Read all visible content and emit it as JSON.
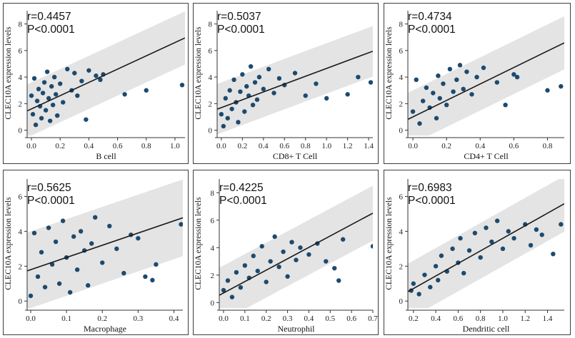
{
  "y_axis_label": "CLEC10A expression levels",
  "colors": {
    "point": "#1d4a6e",
    "band": "#e4e4e4",
    "line": "#1a1a1a",
    "axis": "#333333"
  },
  "chart_data": [
    {
      "type": "scatter",
      "title": "",
      "xlabel": "B cell",
      "ylabel": "CLEC10A expression levels",
      "r_label": "r=0.4457",
      "p_label": "P<0.0001",
      "xlim": [
        -0.03,
        1.07
      ],
      "ylim": [
        -0.4,
        9
      ],
      "xticks": [
        0.0,
        0.2,
        0.4,
        0.6,
        0.8,
        1.0
      ],
      "xtick_labels": [
        "0.0",
        "0.2",
        "0.4",
        "0.6",
        "0.8",
        "1.0"
      ],
      "yticks": [
        0,
        2,
        4,
        6,
        8
      ],
      "ytick_labels": [
        "0",
        "2",
        "4",
        "6",
        "8"
      ],
      "fit": {
        "slope": 5.0,
        "intercept": 1.6
      },
      "band_halfwidth": 2.0,
      "points": [
        [
          0.0,
          2.6
        ],
        [
          0.01,
          1.2
        ],
        [
          0.02,
          3.9
        ],
        [
          0.03,
          0.4
        ],
        [
          0.04,
          2.2
        ],
        [
          0.05,
          3.1
        ],
        [
          0.06,
          1.8
        ],
        [
          0.07,
          0.9
        ],
        [
          0.08,
          2.8
        ],
        [
          0.09,
          3.6
        ],
        [
          0.1,
          1.5
        ],
        [
          0.11,
          4.4
        ],
        [
          0.12,
          2.4
        ],
        [
          0.13,
          0.7
        ],
        [
          0.14,
          3.3
        ],
        [
          0.15,
          1.9
        ],
        [
          0.16,
          4.0
        ],
        [
          0.17,
          2.7
        ],
        [
          0.18,
          1.1
        ],
        [
          0.2,
          3.5
        ],
        [
          0.22,
          2.1
        ],
        [
          0.25,
          4.6
        ],
        [
          0.28,
          3.0
        ],
        [
          0.3,
          4.3
        ],
        [
          0.32,
          2.6
        ],
        [
          0.35,
          3.7
        ],
        [
          0.38,
          0.8
        ],
        [
          0.4,
          4.5
        ],
        [
          0.45,
          4.1
        ],
        [
          0.48,
          3.8
        ],
        [
          0.5,
          4.2
        ],
        [
          0.65,
          2.7
        ],
        [
          0.8,
          3.0
        ],
        [
          1.05,
          3.4
        ]
      ]
    },
    {
      "type": "scatter",
      "title": "",
      "xlabel": "CD8+ T Cell",
      "ylabel": "CLEC10A expression levels",
      "r_label": "r=0.5037",
      "p_label": "P<0.0001",
      "xlim": [
        -0.04,
        1.44
      ],
      "ylim": [
        -0.4,
        9
      ],
      "xticks": [
        0.0,
        0.2,
        0.4,
        0.6,
        0.8,
        1.0,
        1.2,
        1.4
      ],
      "xtick_labels": [
        "0.0",
        "0.2",
        "0.4",
        "0.6",
        "0.8",
        "1.0",
        "1.2",
        "1.4"
      ],
      "yticks": [
        0,
        2,
        4,
        6,
        8
      ],
      "ytick_labels": [
        "0",
        "2",
        "4",
        "6",
        "8"
      ],
      "fit": {
        "slope": 2.95,
        "intercept": 1.7
      },
      "band_halfwidth": 1.9,
      "points": [
        [
          0.0,
          1.2
        ],
        [
          0.02,
          0.3
        ],
        [
          0.04,
          2.4
        ],
        [
          0.06,
          0.9
        ],
        [
          0.08,
          3.0
        ],
        [
          0.1,
          1.6
        ],
        [
          0.12,
          3.8
        ],
        [
          0.14,
          2.1
        ],
        [
          0.16,
          0.6
        ],
        [
          0.18,
          2.9
        ],
        [
          0.2,
          4.2
        ],
        [
          0.22,
          1.4
        ],
        [
          0.24,
          3.3
        ],
        [
          0.26,
          2.6
        ],
        [
          0.28,
          4.8
        ],
        [
          0.3,
          1.9
        ],
        [
          0.32,
          3.6
        ],
        [
          0.34,
          2.3
        ],
        [
          0.36,
          4.0
        ],
        [
          0.4,
          3.1
        ],
        [
          0.45,
          4.6
        ],
        [
          0.5,
          2.8
        ],
        [
          0.55,
          3.9
        ],
        [
          0.6,
          3.4
        ],
        [
          0.7,
          4.3
        ],
        [
          0.8,
          2.6
        ],
        [
          0.9,
          3.5
        ],
        [
          1.0,
          2.4
        ],
        [
          1.2,
          2.7
        ],
        [
          1.3,
          4.0
        ],
        [
          1.42,
          3.6
        ]
      ]
    },
    {
      "type": "scatter",
      "title": "",
      "xlabel": "CD4+ T Cell",
      "ylabel": "CLEC10A expression levels",
      "r_label": "r=0.4734",
      "p_label": "P<0.0001",
      "xlim": [
        -0.03,
        0.9
      ],
      "ylim": [
        -0.4,
        9
      ],
      "xticks": [
        0.0,
        0.2,
        0.4,
        0.6,
        0.8
      ],
      "xtick_labels": [
        "0.0",
        "0.2",
        "0.4",
        "0.6",
        "0.8"
      ],
      "yticks": [
        0,
        2,
        4,
        6,
        8
      ],
      "ytick_labels": [
        "0",
        "2",
        "4",
        "6",
        "8"
      ],
      "fit": {
        "slope": 6.2,
        "intercept": 1.0
      },
      "band_halfwidth": 2.0,
      "points": [
        [
          0.0,
          1.4
        ],
        [
          0.02,
          3.8
        ],
        [
          0.04,
          0.5
        ],
        [
          0.06,
          2.2
        ],
        [
          0.08,
          3.2
        ],
        [
          0.1,
          1.7
        ],
        [
          0.12,
          2.8
        ],
        [
          0.14,
          0.9
        ],
        [
          0.15,
          4.1
        ],
        [
          0.16,
          2.4
        ],
        [
          0.18,
          3.5
        ],
        [
          0.2,
          1.9
        ],
        [
          0.22,
          4.6
        ],
        [
          0.24,
          2.9
        ],
        [
          0.26,
          3.8
        ],
        [
          0.28,
          4.9
        ],
        [
          0.3,
          3.1
        ],
        [
          0.32,
          4.4
        ],
        [
          0.35,
          2.7
        ],
        [
          0.38,
          4.0
        ],
        [
          0.42,
          4.7
        ],
        [
          0.5,
          3.6
        ],
        [
          0.55,
          1.9
        ],
        [
          0.6,
          4.2
        ],
        [
          0.62,
          4.0
        ],
        [
          0.8,
          3.0
        ],
        [
          0.88,
          3.3
        ]
      ]
    },
    {
      "type": "scatter",
      "title": "",
      "xlabel": "Macrophage",
      "ylabel": "CLEC10A expression levels",
      "r_label": "r=0.5625",
      "p_label": "P<0.0001",
      "xlim": [
        -0.01,
        0.425
      ],
      "ylim": [
        -0.4,
        7
      ],
      "xticks": [
        0.0,
        0.1,
        0.2,
        0.3,
        0.4
      ],
      "xtick_labels": [
        "0.0",
        "0.1",
        "0.2",
        "0.3",
        "0.4"
      ],
      "yticks": [
        0,
        2,
        4,
        6
      ],
      "ytick_labels": [
        "0",
        "2",
        "4",
        "6"
      ],
      "fit": {
        "slope": 7.0,
        "intercept": 1.8
      },
      "band_halfwidth": 2.2,
      "points": [
        [
          0.0,
          0.3
        ],
        [
          0.01,
          3.9
        ],
        [
          0.02,
          1.4
        ],
        [
          0.03,
          2.8
        ],
        [
          0.04,
          0.8
        ],
        [
          0.05,
          4.2
        ],
        [
          0.06,
          2.1
        ],
        [
          0.07,
          3.4
        ],
        [
          0.08,
          1.0
        ],
        [
          0.09,
          4.6
        ],
        [
          0.1,
          2.5
        ],
        [
          0.11,
          0.5
        ],
        [
          0.12,
          3.7
        ],
        [
          0.13,
          1.8
        ],
        [
          0.14,
          4.0
        ],
        [
          0.15,
          2.9
        ],
        [
          0.16,
          0.9
        ],
        [
          0.17,
          3.3
        ],
        [
          0.18,
          4.8
        ],
        [
          0.2,
          2.2
        ],
        [
          0.22,
          4.3
        ],
        [
          0.24,
          3.0
        ],
        [
          0.26,
          1.6
        ],
        [
          0.28,
          3.8
        ],
        [
          0.3,
          3.6
        ],
        [
          0.32,
          1.4
        ],
        [
          0.34,
          1.2
        ],
        [
          0.35,
          2.1
        ],
        [
          0.42,
          4.4
        ]
      ]
    },
    {
      "type": "scatter",
      "title": "",
      "xlabel": "Neutrophil",
      "ylabel": "CLEC10A expression levels",
      "r_label": "r=0.4225",
      "p_label": "P<0.0001",
      "xlim": [
        -0.02,
        0.7
      ],
      "ylim": [
        -0.4,
        9
      ],
      "xticks": [
        0.0,
        0.1,
        0.2,
        0.3,
        0.4,
        0.5,
        0.6,
        0.7
      ],
      "xtick_labels": [
        "0.0",
        "0.1",
        "0.2",
        "0.3",
        "0.4",
        "0.5",
        "0.6",
        "0.7"
      ],
      "yticks": [
        0,
        2,
        4,
        6,
        8
      ],
      "ytick_labels": [
        "0",
        "2",
        "4",
        "6",
        "8"
      ],
      "fit": {
        "slope": 8.3,
        "intercept": 0.7
      },
      "band_halfwidth": 2.0,
      "points": [
        [
          0.0,
          0.9
        ],
        [
          0.02,
          1.6
        ],
        [
          0.04,
          0.4
        ],
        [
          0.06,
          2.2
        ],
        [
          0.08,
          1.1
        ],
        [
          0.1,
          2.7
        ],
        [
          0.12,
          1.8
        ],
        [
          0.14,
          3.4
        ],
        [
          0.16,
          2.3
        ],
        [
          0.18,
          4.1
        ],
        [
          0.2,
          1.5
        ],
        [
          0.22,
          3.0
        ],
        [
          0.24,
          4.8
        ],
        [
          0.26,
          2.6
        ],
        [
          0.28,
          3.7
        ],
        [
          0.3,
          1.9
        ],
        [
          0.32,
          4.4
        ],
        [
          0.34,
          3.1
        ],
        [
          0.36,
          4.0
        ],
        [
          0.4,
          3.5
        ],
        [
          0.44,
          4.3
        ],
        [
          0.48,
          3.0
        ],
        [
          0.52,
          2.5
        ],
        [
          0.54,
          1.6
        ],
        [
          0.56,
          4.6
        ],
        [
          0.7,
          4.1
        ]
      ]
    },
    {
      "type": "scatter",
      "title": "",
      "xlabel": "Dendritic cell",
      "ylabel": "CLEC10A expression levels",
      "r_label": "r=0.6983",
      "p_label": "P<0.0001",
      "xlim": [
        0.15,
        1.55
      ],
      "ylim": [
        -0.4,
        7
      ],
      "xticks": [
        0.2,
        0.4,
        0.6,
        0.8,
        1.0,
        1.2,
        1.4
      ],
      "xtick_labels": [
        "0.2",
        "0.4",
        "0.6",
        "0.8",
        "1.0",
        "1.2",
        "1.4"
      ],
      "yticks": [
        0,
        2,
        4,
        6
      ],
      "ytick_labels": [
        "0",
        "2",
        "4",
        "6"
      ],
      "fit": {
        "slope": 3.6,
        "intercept": 0.0
      },
      "band_halfwidth": 1.6,
      "points": [
        [
          0.18,
          0.6
        ],
        [
          0.2,
          1.0
        ],
        [
          0.25,
          0.4
        ],
        [
          0.3,
          1.5
        ],
        [
          0.35,
          0.8
        ],
        [
          0.4,
          2.0
        ],
        [
          0.42,
          1.2
        ],
        [
          0.45,
          2.6
        ],
        [
          0.5,
          1.7
        ],
        [
          0.55,
          3.0
        ],
        [
          0.6,
          2.2
        ],
        [
          0.62,
          3.6
        ],
        [
          0.65,
          1.6
        ],
        [
          0.7,
          2.9
        ],
        [
          0.75,
          3.9
        ],
        [
          0.8,
          2.5
        ],
        [
          0.85,
          4.2
        ],
        [
          0.9,
          3.4
        ],
        [
          0.95,
          4.6
        ],
        [
          1.0,
          3.0
        ],
        [
          1.05,
          4.0
        ],
        [
          1.1,
          3.6
        ],
        [
          1.2,
          4.4
        ],
        [
          1.25,
          3.2
        ],
        [
          1.3,
          4.1
        ],
        [
          1.35,
          3.8
        ],
        [
          1.45,
          2.7
        ],
        [
          1.52,
          4.4
        ]
      ]
    }
  ]
}
